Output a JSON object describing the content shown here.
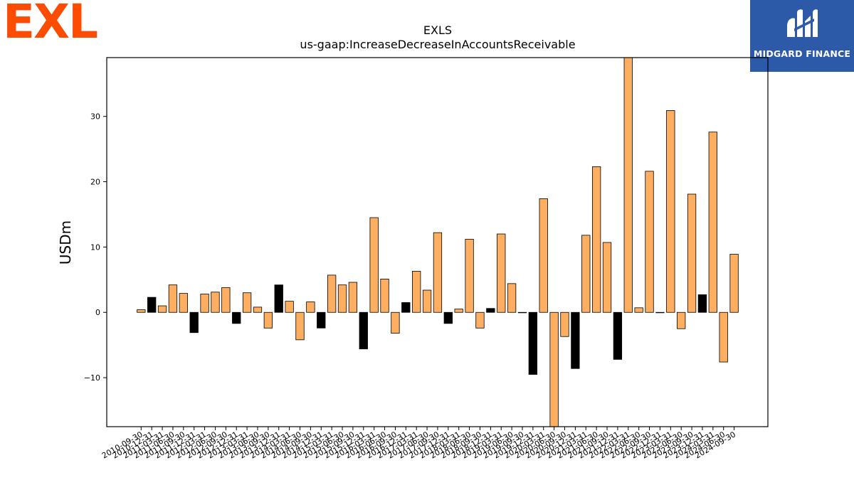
{
  "logo": {
    "text": "EXL",
    "color": "#fc4c02"
  },
  "badge": {
    "name": "MIDGARD FINANCE",
    "background": "#2d5aa8",
    "icon": "midgard-logo-icon"
  },
  "chart_data": {
    "type": "bar",
    "title": "EXLS",
    "subtitle": "us-gaap:IncreaseDecreaseInAccountsReceivable",
    "ylabel": "USDm",
    "xlabel": "",
    "ylim": [
      -17.5,
      39
    ],
    "yticks": [
      -10,
      0,
      10,
      20,
      30
    ],
    "grid": false,
    "colors": {
      "positive": "#fdae61",
      "negative": "#000000",
      "edge": "#000000"
    },
    "categories": [
      "2010-09-30",
      "2010-12-31",
      "2011-03-31",
      "2011-06-30",
      "2011-09-30",
      "2011-12-31",
      "2012-03-31",
      "2012-06-30",
      "2012-09-30",
      "2012-12-31",
      "2013-03-31",
      "2013-06-30",
      "2013-09-30",
      "2013-12-31",
      "2014-03-31",
      "2014-06-30",
      "2014-09-30",
      "2014-12-31",
      "2015-03-31",
      "2015-06-30",
      "2015-09-30",
      "2015-12-31",
      "2016-03-31",
      "2016-06-30",
      "2016-09-30",
      "2016-12-31",
      "2017-03-31",
      "2017-06-30",
      "2017-09-30",
      "2017-12-31",
      "2018-03-31",
      "2018-06-30",
      "2018-09-30",
      "2018-12-31",
      "2019-03-31",
      "2019-06-30",
      "2019-09-30",
      "2019-12-31",
      "2020-03-31",
      "2020-06-30",
      "2020-09-30",
      "2020-12-31",
      "2021-03-31",
      "2021-06-30",
      "2021-09-30",
      "2021-12-31",
      "2022-03-31",
      "2022-06-30",
      "2022-09-30",
      "2022-12-31",
      "2023-03-31",
      "2023-06-30",
      "2023-09-30",
      "2023-12-31",
      "2024-03-31",
      "2024-06-30",
      "2024-09-30"
    ],
    "values": [
      0.4,
      2.3,
      1.0,
      4.2,
      2.9,
      -3.1,
      2.8,
      3.1,
      3.8,
      -1.7,
      3.0,
      0.8,
      -2.4,
      4.2,
      1.7,
      -4.2,
      1.6,
      -2.4,
      5.7,
      4.2,
      4.6,
      -5.6,
      14.5,
      5.1,
      -3.2,
      1.5,
      6.3,
      3.4,
      12.2,
      -1.7,
      0.5,
      11.2,
      -2.4,
      0.6,
      12.0,
      4.4,
      0.0,
      -9.5,
      17.4,
      -17.5,
      -3.7,
      -8.6,
      11.8,
      22.3,
      10.7,
      -7.2,
      39.0,
      0.7,
      21.6,
      0.0,
      30.9,
      -2.5,
      18.1,
      2.7,
      27.6,
      -7.6,
      8.9
    ],
    "fill": [
      "pos",
      "neg",
      "pos",
      "pos",
      "pos",
      "neg",
      "pos",
      "pos",
      "pos",
      "neg",
      "pos",
      "pos",
      "pos",
      "neg",
      "pos",
      "pos",
      "pos",
      "neg",
      "pos",
      "pos",
      "pos",
      "neg",
      "pos",
      "pos",
      "pos",
      "neg",
      "pos",
      "pos",
      "pos",
      "neg",
      "pos",
      "pos",
      "pos",
      "neg",
      "pos",
      "pos",
      "pos",
      "neg",
      "pos",
      "pos",
      "pos",
      "neg",
      "pos",
      "pos",
      "pos",
      "neg",
      "pos",
      "pos",
      "pos",
      "neg",
      "pos",
      "pos",
      "pos",
      "neg",
      "pos",
      "pos",
      "pos"
    ]
  }
}
